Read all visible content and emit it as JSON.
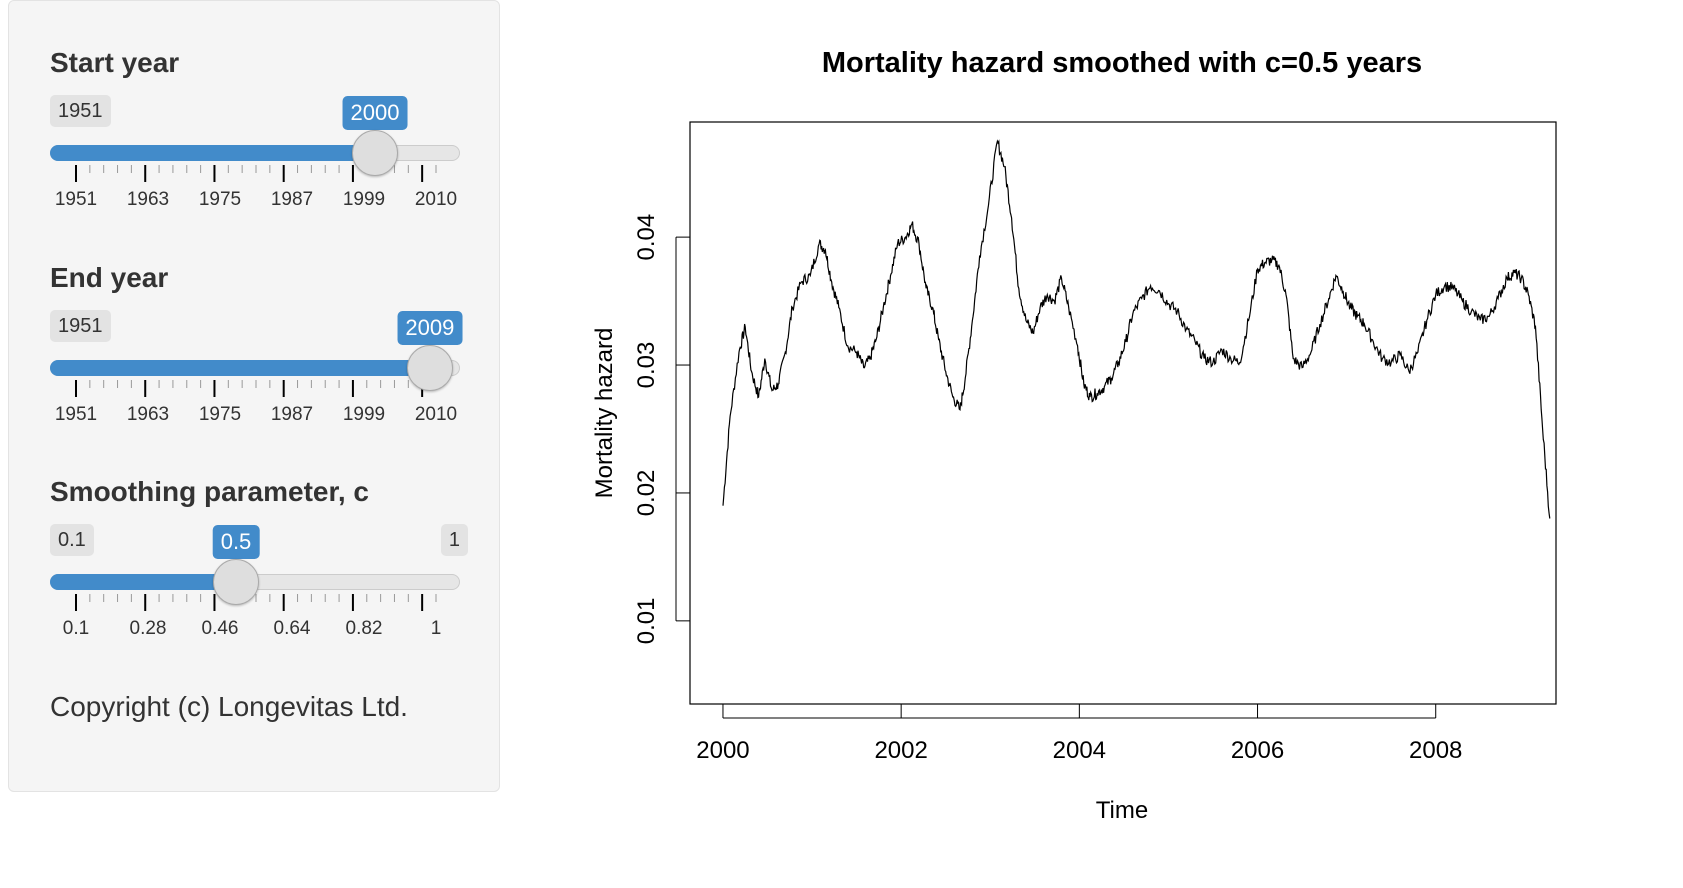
{
  "sidebar": {
    "sliders": [
      {
        "label": "Start year",
        "min_label": "1951",
        "max_label": "",
        "value_label": "2000",
        "min": 1951,
        "max": 2010,
        "value": 2000,
        "ticks": [
          "1951",
          "1963",
          "1975",
          "1987",
          "1999",
          "2010"
        ]
      },
      {
        "label": "End year",
        "min_label": "1951",
        "max_label": "",
        "value_label": "2009",
        "min": 1951,
        "max": 2010,
        "value": 2009,
        "ticks": [
          "1951",
          "1963",
          "1975",
          "1987",
          "1999",
          "2010"
        ]
      },
      {
        "label": "Smoothing parameter, c",
        "min_label": "0.1",
        "max_label": "1",
        "value_label": "0.5",
        "min": 0.1,
        "max": 1,
        "value": 0.5,
        "ticks": [
          "0.1",
          "0.28",
          "0.46",
          "0.64",
          "0.82",
          "1"
        ]
      }
    ],
    "copyright": "Copyright (c) Longevitas Ltd."
  },
  "colors": {
    "accent": "#428bca",
    "panel": "#f5f5f5",
    "track": "#e6e6e6"
  },
  "chart_data": {
    "type": "line",
    "title": "Mortality hazard smoothed with c=0.5 years",
    "xlabel": "Time",
    "ylabel": "Mortality hazard",
    "xlim": [
      1999.63,
      2009.35
    ],
    "ylim": [
      0.0035,
      0.049
    ],
    "xticks": [
      "2000",
      "2002",
      "2004",
      "2006",
      "2008"
    ],
    "yticks": [
      "0.01",
      "0.02",
      "0.03",
      "0.04"
    ],
    "grid": false,
    "series": [
      {
        "x": [
          2000.0,
          2000.08,
          2000.18,
          2000.25,
          2000.32,
          2000.4,
          2000.47,
          2000.55,
          2000.62,
          2000.7,
          2000.78,
          2000.88,
          2000.98,
          2001.08,
          2001.15,
          2001.22,
          2001.3,
          2001.4,
          2001.5,
          2001.58,
          2001.65,
          2001.72,
          2001.8,
          2001.88,
          2001.96,
          2002.05,
          2002.12,
          2002.2,
          2002.28,
          2002.35,
          2002.42,
          2002.5,
          2002.58,
          2002.66,
          2002.72,
          2002.8,
          2002.88,
          2002.98,
          2003.08,
          2003.16,
          2003.24,
          2003.32,
          2003.4,
          2003.48,
          2003.56,
          2003.64,
          2003.72,
          2003.8,
          2003.88,
          2003.98,
          2004.05,
          2004.12,
          2004.2,
          2004.28,
          2004.36,
          2004.44,
          2004.52,
          2004.6,
          2004.7,
          2004.8,
          2004.9,
          2005.0,
          2005.1,
          2005.2,
          2005.3,
          2005.4,
          2005.5,
          2005.6,
          2005.7,
          2005.8,
          2005.9,
          2006.0,
          2006.08,
          2006.16,
          2006.24,
          2006.32,
          2006.4,
          2006.5,
          2006.6,
          2006.7,
          2006.8,
          2006.88,
          2006.96,
          2007.04,
          2007.12,
          2007.2,
          2007.3,
          2007.4,
          2007.5,
          2007.6,
          2007.7,
          2007.8,
          2007.9,
          2008.0,
          2008.1,
          2008.2,
          2008.3,
          2008.4,
          2008.5,
          2008.6,
          2008.7,
          2008.8,
          2008.88,
          2008.96,
          2009.04,
          2009.12,
          2009.2,
          2009.28
        ],
        "y": [
          0.019,
          0.026,
          0.031,
          0.033,
          0.0295,
          0.0275,
          0.0305,
          0.028,
          0.0285,
          0.031,
          0.0345,
          0.0365,
          0.037,
          0.0395,
          0.039,
          0.0365,
          0.0345,
          0.0315,
          0.031,
          0.0298,
          0.0305,
          0.032,
          0.0345,
          0.037,
          0.0395,
          0.04,
          0.041,
          0.0395,
          0.036,
          0.0345,
          0.032,
          0.0295,
          0.0275,
          0.0265,
          0.029,
          0.0335,
          0.0385,
          0.0425,
          0.0475,
          0.0455,
          0.0415,
          0.036,
          0.0335,
          0.0325,
          0.0345,
          0.0355,
          0.035,
          0.0368,
          0.0345,
          0.0315,
          0.0285,
          0.0275,
          0.0278,
          0.0283,
          0.029,
          0.0302,
          0.0318,
          0.034,
          0.0352,
          0.0362,
          0.0358,
          0.0348,
          0.0342,
          0.0328,
          0.0318,
          0.0305,
          0.0302,
          0.0312,
          0.0305,
          0.0302,
          0.0335,
          0.0375,
          0.038,
          0.0382,
          0.0378,
          0.0355,
          0.0305,
          0.0298,
          0.031,
          0.0332,
          0.0352,
          0.037,
          0.0358,
          0.0345,
          0.0338,
          0.0332,
          0.0318,
          0.0305,
          0.0302,
          0.0308,
          0.0295,
          0.031,
          0.0335,
          0.0355,
          0.0362,
          0.036,
          0.035,
          0.0342,
          0.0335,
          0.0338,
          0.0352,
          0.0368,
          0.0372,
          0.0368,
          0.0355,
          0.033,
          0.025,
          0.018
        ]
      }
    ]
  }
}
